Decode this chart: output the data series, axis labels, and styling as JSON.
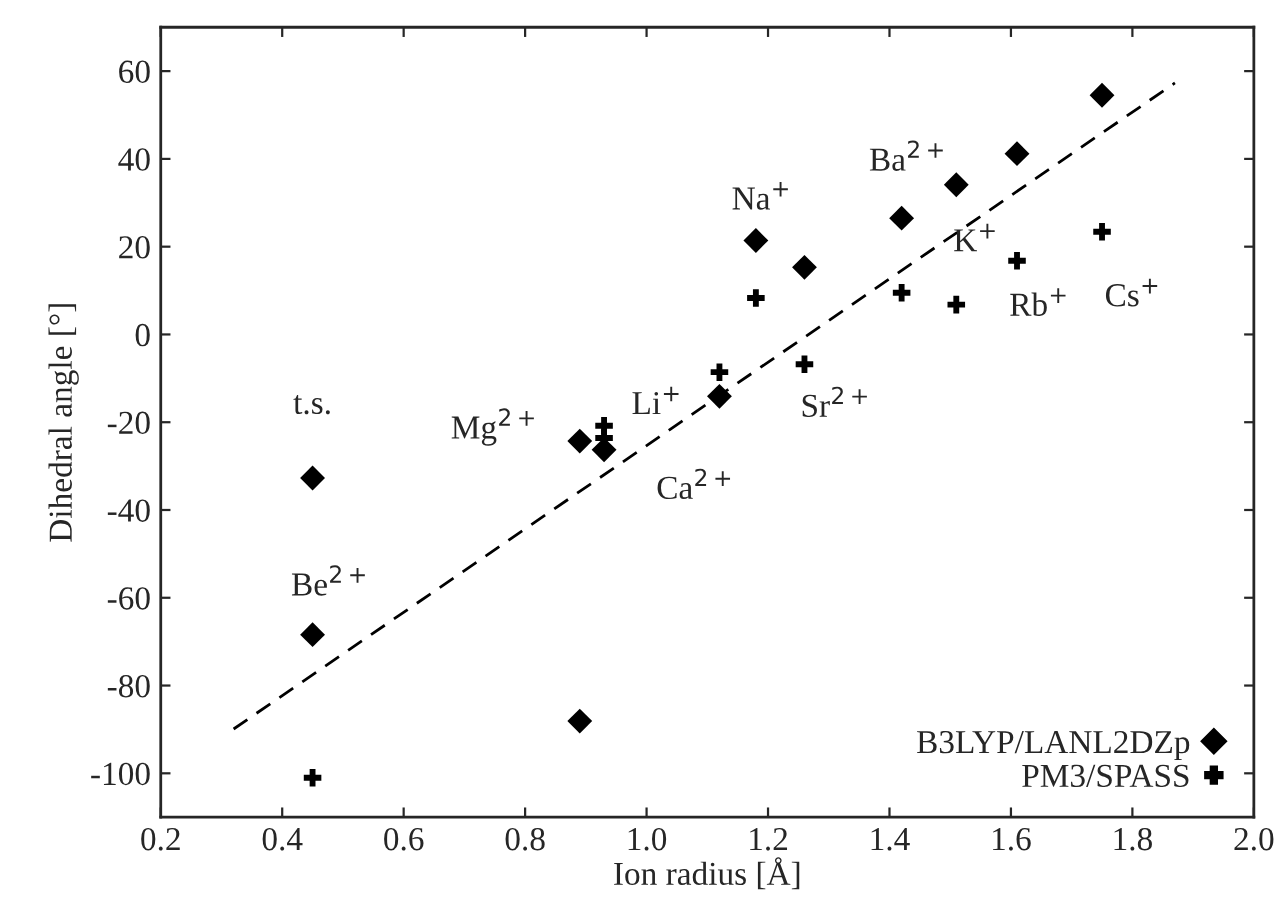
{
  "chart_data": {
    "type": "scatter",
    "xlabel": "Ion radius [Å]",
    "ylabel": "Dihedral angle [°]",
    "xlim": [
      0.2,
      2.0
    ],
    "xticks": [
      0.2,
      0.4,
      0.6,
      0.8,
      {
        "value": 1,
        "label": "1.0"
      },
      1.2,
      1.4,
      1.6,
      1.8,
      {
        "value": 2,
        "label": "2.0"
      }
    ],
    "ylim": [
      -110,
      70
    ],
    "yticks": [
      -100,
      -80,
      -60,
      -40,
      -20,
      0,
      20,
      40,
      60
    ],
    "grid": false,
    "legend": "bottom right",
    "series": [
      {
        "name": "B3LYP/LANL2DZp",
        "color": "#000000",
        "marker": "diamond",
        "x": [
          0.45,
          0.45,
          0.89,
          0.89,
          0.93,
          1.12,
          1.18,
          1.26,
          1.42,
          1.51,
          1.61,
          1.75
        ],
        "values": [
          -32.7,
          -68.4,
          -24.3,
          -88.1,
          -26.3,
          -14.1,
          21.4,
          15.3,
          26.5,
          34.1,
          41.2,
          54.5
        ]
      },
      {
        "name": "PM3/SPASS",
        "color": "#000000",
        "marker": "cross",
        "x": [
          0.45,
          0.93,
          0.93,
          1.12,
          1.18,
          1.26,
          1.42,
          1.51,
          1.61,
          1.75
        ],
        "values": [
          -101,
          -20.8,
          -23.6,
          -8.6,
          8.3,
          -6.8,
          9.5,
          6.8,
          16.8,
          23.4
        ]
      },
      {
        "type": "line",
        "line_style": "dashed",
        "color": "#000000",
        "marker": "none",
        "x": [
          0.32,
          1.87
        ],
        "values": [
          -89.9,
          57.3
        ]
      }
    ],
    "annotations": [
      {
        "text": "t.s.",
        "x": 0.45,
        "y": -32.7
      },
      {
        "text": "Be$^{2+}$",
        "x": 0.45,
        "y": -68.4
      },
      {
        "text": "Mg$^{2+}$",
        "x": 0.89,
        "y": -24.3
      },
      {
        "text": "Li$^{+}$",
        "x": 0.93,
        "y": -20.8
      },
      {
        "text": "Ca$^{2+}$",
        "x": 1.12,
        "y": -14.1
      },
      {
        "text": "Na$^{+}$",
        "x": 1.18,
        "y": 21.4
      },
      {
        "text": "Sr$^{2+}$",
        "x": 1.26,
        "y": -6.8
      },
      {
        "text": "Ba$^{2+}$",
        "x": 1.42,
        "y": 26.5
      },
      {
        "text": "K$^{+}$",
        "x": 1.51,
        "y": 6.8
      },
      {
        "text": "Rb$^{+}$",
        "x": 1.61,
        "y": 16.8
      },
      {
        "text": "Cs$^{+}$",
        "x": 1.75,
        "y": 23.4
      }
    ]
  }
}
